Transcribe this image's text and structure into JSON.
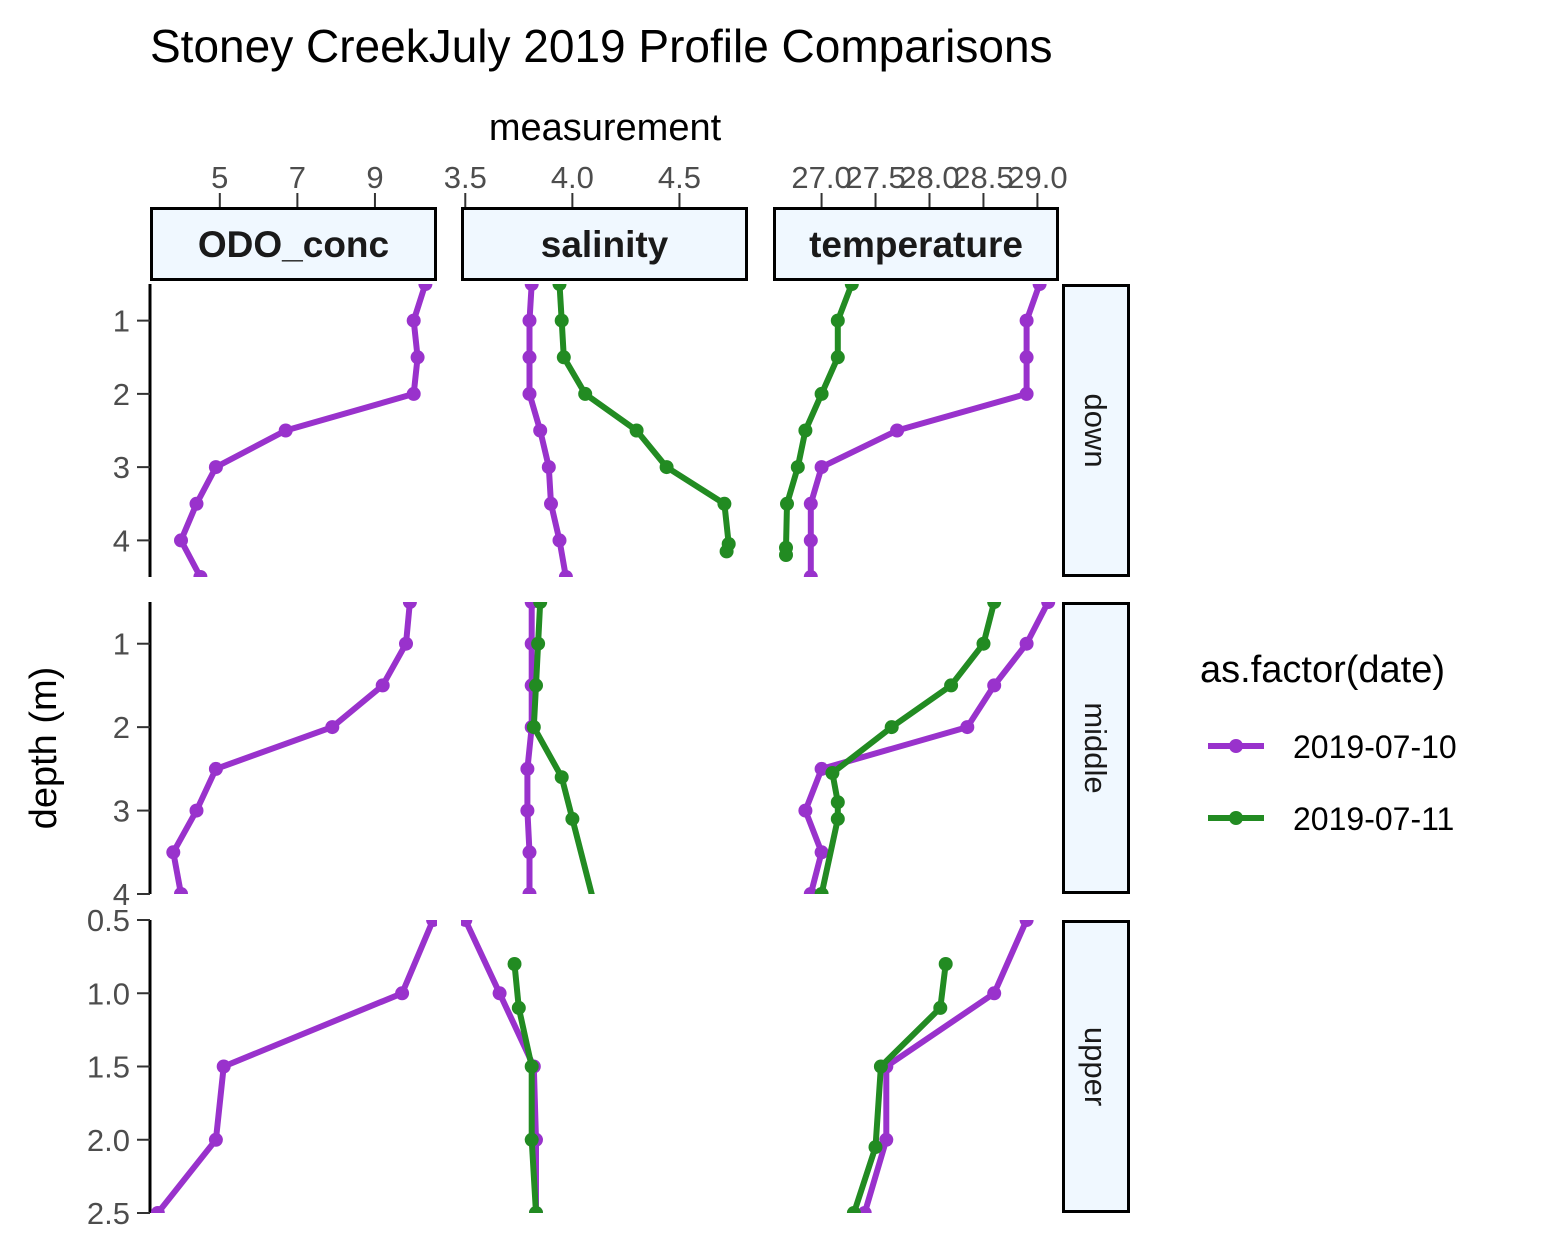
{
  "chart_data": {
    "type": "line",
    "title": "Stoney CreekJuly 2019 Profile Comparisons",
    "xlabel": "measurement",
    "ylabel": "depth (m)",
    "x_axis_position": "top",
    "y_reversed": true,
    "grid": false,
    "legend": {
      "title": "as.factor(date)",
      "position": "right",
      "entries": [
        {
          "label": "2019-07-10",
          "color": "#9932CC"
        },
        {
          "label": "2019-07-11",
          "color": "#228B22"
        }
      ]
    },
    "columns": [
      {
        "name": "ODO_conc",
        "xlim": [
          3.2,
          10.6
        ],
        "ticks": [
          5,
          7,
          9
        ],
        "tick_labels": [
          "5",
          "7",
          "9"
        ]
      },
      {
        "name": "salinity",
        "xlim": [
          3.48,
          4.82
        ],
        "ticks": [
          3.5,
          4.0,
          4.5
        ],
        "tick_labels": [
          "3.5",
          "4.0",
          "4.5"
        ]
      },
      {
        "name": "temperature",
        "xlim": [
          26.55,
          29.2
        ],
        "ticks": [
          27.0,
          27.5,
          28.0,
          28.5,
          29.0
        ],
        "tick_labels": [
          "27.0",
          "27.5",
          "28.0",
          "28.5",
          "29.0"
        ]
      }
    ],
    "rows": [
      {
        "name": "down",
        "ylim": [
          0.5,
          4.5
        ],
        "ticks": [
          1,
          2,
          3,
          4
        ],
        "tick_labels": [
          "1",
          "2",
          "3",
          "4"
        ]
      },
      {
        "name": "middle",
        "ylim": [
          0.5,
          4.0
        ],
        "ticks": [
          1,
          2,
          3,
          4
        ],
        "tick_labels": [
          "1",
          "2",
          "3",
          "4"
        ]
      },
      {
        "name": "upper",
        "ylim": [
          0.5,
          2.5
        ],
        "ticks": [
          0.5,
          1.0,
          1.5,
          2.0,
          2.5
        ],
        "tick_labels": [
          "0.5",
          "1.0",
          "1.5",
          "2.0",
          "2.5"
        ]
      }
    ],
    "panels": [
      {
        "column": "ODO_conc",
        "row": "down",
        "series": [
          {
            "name": "2019-07-10",
            "x": [
              10.3,
              10.0,
              10.1,
              10.0,
              6.7,
              4.9,
              4.4,
              4.0,
              4.5
            ],
            "y": [
              0.5,
              1.0,
              1.5,
              2.0,
              2.5,
              3.0,
              3.5,
              4.0,
              4.5
            ]
          }
        ]
      },
      {
        "column": "salinity",
        "row": "down",
        "series": [
          {
            "name": "2019-07-10",
            "x": [
              3.81,
              3.8,
              3.8,
              3.8,
              3.85,
              3.89,
              3.9,
              3.94,
              3.97
            ],
            "y": [
              0.5,
              1.0,
              1.5,
              2.0,
              2.5,
              3.0,
              3.5,
              4.0,
              4.5
            ]
          },
          {
            "name": "2019-07-11",
            "x": [
              3.94,
              3.95,
              3.96,
              4.06,
              4.3,
              4.44,
              4.71,
              4.73,
              4.72
            ],
            "y": [
              0.5,
              1.0,
              1.5,
              2.0,
              2.5,
              3.0,
              3.5,
              4.05,
              4.15
            ]
          }
        ]
      },
      {
        "column": "temperature",
        "row": "down",
        "series": [
          {
            "name": "2019-07-10",
            "x": [
              29.02,
              28.9,
              28.9,
              28.9,
              27.7,
              27.0,
              26.9,
              26.9,
              26.9
            ],
            "y": [
              0.5,
              1.0,
              1.5,
              2.0,
              2.5,
              3.0,
              3.5,
              4.0,
              4.5
            ]
          },
          {
            "name": "2019-07-11",
            "x": [
              27.28,
              27.15,
              27.15,
              27.0,
              26.85,
              26.78,
              26.68,
              26.67,
              26.67
            ],
            "y": [
              0.5,
              1.0,
              1.5,
              2.0,
              2.5,
              3.0,
              3.5,
              4.1,
              4.2
            ]
          }
        ]
      },
      {
        "column": "ODO_conc",
        "row": "middle",
        "series": [
          {
            "name": "2019-07-10",
            "x": [
              9.9,
              9.8,
              9.2,
              7.9,
              4.9,
              4.4,
              3.8,
              4.0
            ],
            "y": [
              0.5,
              1.0,
              1.5,
              2.0,
              2.5,
              3.0,
              3.5,
              4.0
            ]
          }
        ]
      },
      {
        "column": "salinity",
        "row": "middle",
        "series": [
          {
            "name": "2019-07-10",
            "x": [
              3.81,
              3.81,
              3.81,
              3.81,
              3.79,
              3.79,
              3.8,
              3.8
            ],
            "y": [
              0.5,
              1.0,
              1.5,
              2.0,
              2.5,
              3.0,
              3.5,
              4.0
            ]
          },
          {
            "name": "2019-07-11",
            "x": [
              3.85,
              3.84,
              3.83,
              3.82,
              3.95,
              4.0,
              4.1
            ],
            "y": [
              0.5,
              1.0,
              1.5,
              2.0,
              2.6,
              3.1,
              4.1
            ]
          }
        ]
      },
      {
        "column": "temperature",
        "row": "middle",
        "series": [
          {
            "name": "2019-07-10",
            "x": [
              29.1,
              28.9,
              28.6,
              28.35,
              27.0,
              26.85,
              27.0,
              26.9
            ],
            "y": [
              0.5,
              1.0,
              1.5,
              2.0,
              2.5,
              3.0,
              3.5,
              4.0
            ]
          },
          {
            "name": "2019-07-11",
            "x": [
              28.6,
              28.5,
              28.2,
              27.65,
              27.1,
              27.15,
              27.15,
              27.0
            ],
            "y": [
              0.5,
              1.0,
              1.5,
              2.0,
              2.55,
              2.9,
              3.1,
              4.0
            ]
          }
        ]
      },
      {
        "column": "ODO_conc",
        "row": "upper",
        "series": [
          {
            "name": "2019-07-10",
            "x": [
              10.5,
              9.7,
              5.1,
              4.9,
              3.4
            ],
            "y": [
              0.5,
              1.0,
              1.5,
              2.0,
              2.5
            ]
          }
        ]
      },
      {
        "column": "salinity",
        "row": "upper",
        "series": [
          {
            "name": "2019-07-10",
            "x": [
              3.5,
              3.66,
              3.82,
              3.83,
              3.83
            ],
            "y": [
              0.5,
              1.0,
              1.5,
              2.0,
              2.5
            ]
          },
          {
            "name": "2019-07-11",
            "x": [
              3.73,
              3.75,
              3.81,
              3.81,
              3.83
            ],
            "y": [
              0.8,
              1.1,
              1.5,
              2.0,
              2.5
            ]
          }
        ]
      },
      {
        "column": "temperature",
        "row": "upper",
        "series": [
          {
            "name": "2019-07-10",
            "x": [
              28.9,
              28.6,
              27.6,
              27.6,
              27.4
            ],
            "y": [
              0.5,
              1.0,
              1.5,
              2.0,
              2.5
            ]
          },
          {
            "name": "2019-07-11",
            "x": [
              28.15,
              28.1,
              27.55,
              27.5,
              27.3
            ],
            "y": [
              0.8,
              1.1,
              1.5,
              2.05,
              2.5
            ]
          }
        ]
      }
    ]
  }
}
